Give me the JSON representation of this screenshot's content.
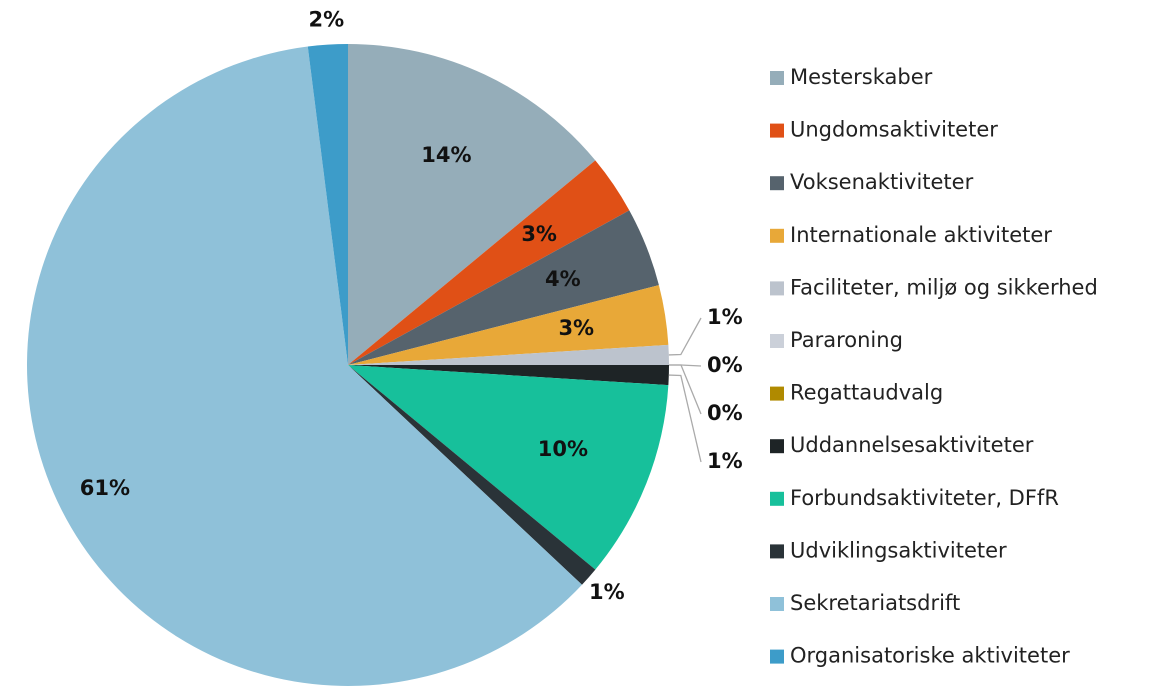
{
  "chart_data": {
    "type": "pie",
    "categories": [
      "Mesterskaber",
      "Ungdomsaktiviteter",
      "Voksenaktiviteter",
      "Internationale aktiviteter",
      "Faciliteter, miljø og sikkerhed",
      "Pararoning",
      "Regattaudvalg",
      "Uddannelsesaktiviteter",
      "Forbundsaktiviteter, DFfR",
      "Udviklingsaktiviteter",
      "Sekretariatsdrift",
      "Organisatoriske aktiviteter"
    ],
    "values": [
      14,
      3,
      4,
      3,
      1,
      0,
      0,
      1,
      10,
      1,
      61,
      2
    ],
    "value_labels": [
      "14%",
      "3%",
      "4%",
      "3%",
      "1%",
      "0%",
      "0%",
      "1%",
      "10%",
      "1%",
      "61%",
      "2%"
    ],
    "colors": [
      "#95adb9",
      "#e05016",
      "#56636d",
      "#e8a838",
      "#bcc3cd",
      "#cbd0d9",
      "#b08a00",
      "#1e2426",
      "#17c09b",
      "#2a3338",
      "#8fc1d9",
      "#3d9cc9"
    ],
    "legend": "right"
  }
}
